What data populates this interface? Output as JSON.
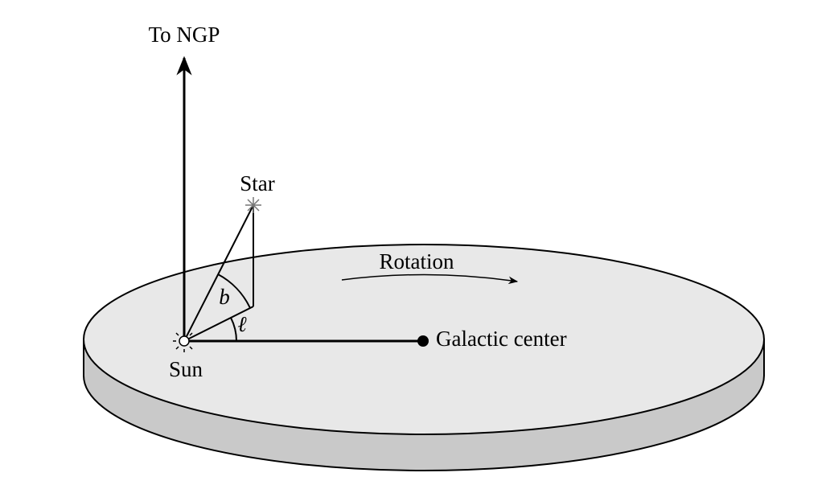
{
  "labels": {
    "ngp": "To NGP",
    "star": "Star",
    "rotation": "Rotation",
    "latitude": "b",
    "longitude": "ℓ",
    "sun": "Sun",
    "center": "Galactic center"
  }
}
